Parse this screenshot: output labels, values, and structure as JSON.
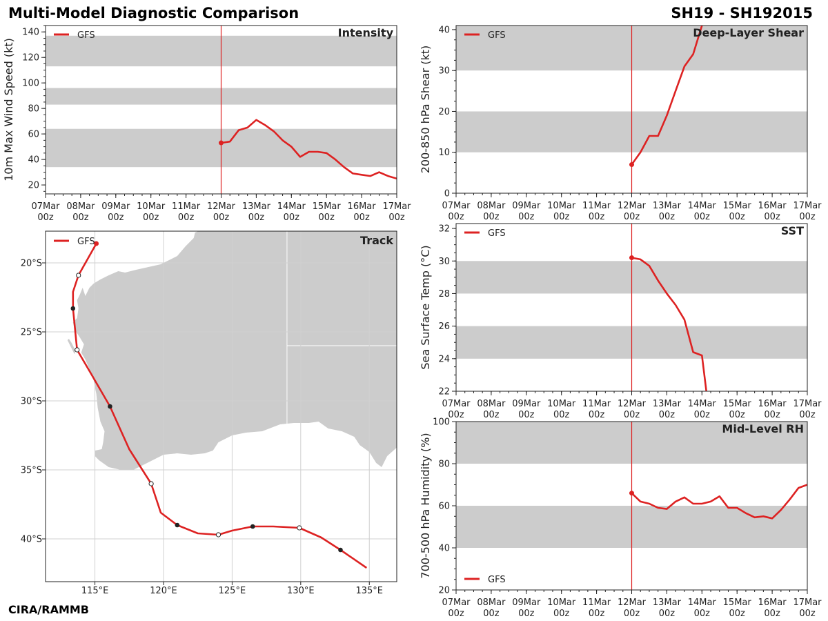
{
  "header": {
    "title": "Multi-Model Diagnostic Comparison",
    "storm_id": "SH19 - SH192015",
    "credit": "CIRA/RAMMB"
  },
  "colors": {
    "series": "#dd2222",
    "band": "#cccccc",
    "land": "#cccccc",
    "grid": "#d0d0d0",
    "axis": "#222222"
  },
  "chart_data": [
    {
      "id": "intensity",
      "type": "line",
      "title": "Intensity",
      "ylabel": "10m Max Wind Speed (kt)",
      "xlim": [
        0,
        240
      ],
      "ylim": [
        13,
        145
      ],
      "yticks": [
        20,
        40,
        60,
        80,
        100,
        120,
        140
      ],
      "xticks": [
        0,
        24,
        48,
        72,
        96,
        120,
        144,
        168,
        192,
        216,
        240
      ],
      "xtick_labels": [
        [
          "07Mar",
          "00z"
        ],
        [
          "08Mar",
          "00z"
        ],
        [
          "09Mar",
          "00z"
        ],
        [
          "10Mar",
          "00z"
        ],
        [
          "11Mar",
          "00z"
        ],
        [
          "12Mar",
          "00z"
        ],
        [
          "13Mar",
          "00z"
        ],
        [
          "14Mar",
          "00z"
        ],
        [
          "15Mar",
          "00z"
        ],
        [
          "16Mar",
          "00z"
        ],
        [
          "17Mar",
          "00z"
        ]
      ],
      "bands": [
        [
          34,
          64
        ],
        [
          83,
          96
        ],
        [
          113,
          137
        ]
      ],
      "vline": 120,
      "legend": "top-left",
      "series": [
        {
          "name": "GFS",
          "x": [
            120,
            126,
            132,
            138,
            144,
            150,
            156,
            162,
            168,
            174,
            180,
            186,
            192,
            198,
            204,
            210,
            216,
            222,
            228,
            234,
            240
          ],
          "values": [
            53,
            54,
            63,
            65,
            71,
            67,
            62,
            55,
            50,
            42,
            46,
            46,
            45,
            40,
            34,
            29,
            28,
            27,
            30,
            27,
            25
          ]
        }
      ]
    },
    {
      "id": "shear",
      "type": "line",
      "title": "Deep-Layer Shear",
      "ylabel": "200-850 hPa Shear (kt)",
      "xlim": [
        0,
        240
      ],
      "ylim": [
        0,
        41
      ],
      "yticks": [
        0,
        10,
        20,
        30,
        40
      ],
      "xticks": [
        0,
        24,
        48,
        72,
        96,
        120,
        144,
        168,
        192,
        216,
        240
      ],
      "xtick_labels": [
        [
          "07Mar",
          "00z"
        ],
        [
          "08Mar",
          "00z"
        ],
        [
          "09Mar",
          "00z"
        ],
        [
          "10Mar",
          "00z"
        ],
        [
          "11Mar",
          "00z"
        ],
        [
          "12Mar",
          "00z"
        ],
        [
          "13Mar",
          "00z"
        ],
        [
          "14Mar",
          "00z"
        ],
        [
          "15Mar",
          "00z"
        ],
        [
          "16Mar",
          "00z"
        ],
        [
          "17Mar",
          "00z"
        ]
      ],
      "bands": [
        [
          10,
          20
        ],
        [
          30,
          41
        ]
      ],
      "vline": 120,
      "legend": "top-left",
      "series": [
        {
          "name": "GFS",
          "x": [
            120,
            126,
            132,
            138,
            144,
            150,
            156,
            162,
            168
          ],
          "values": [
            7,
            10,
            14,
            14,
            19,
            25,
            31,
            34,
            41
          ]
        }
      ]
    },
    {
      "id": "sst",
      "type": "line",
      "title": "SST",
      "ylabel": "Sea Surface Temp (°C)",
      "xlim": [
        0,
        240
      ],
      "ylim": [
        22,
        32.3
      ],
      "yticks": [
        22,
        24,
        26,
        28,
        30,
        32
      ],
      "xticks": [
        0,
        24,
        48,
        72,
        96,
        120,
        144,
        168,
        192,
        216,
        240
      ],
      "xtick_labels": [
        [
          "07Mar",
          "00z"
        ],
        [
          "08Mar",
          "00z"
        ],
        [
          "09Mar",
          "00z"
        ],
        [
          "10Mar",
          "00z"
        ],
        [
          "11Mar",
          "00z"
        ],
        [
          "12Mar",
          "00z"
        ],
        [
          "13Mar",
          "00z"
        ],
        [
          "14Mar",
          "00z"
        ],
        [
          "15Mar",
          "00z"
        ],
        [
          "16Mar",
          "00z"
        ],
        [
          "17Mar",
          "00z"
        ]
      ],
      "bands": [
        [
          24,
          26
        ],
        [
          28,
          30
        ]
      ],
      "vline": 120,
      "legend": "top-left",
      "series": [
        {
          "name": "GFS",
          "x": [
            120,
            126,
            132,
            138,
            144,
            150,
            156,
            162,
            168,
            171
          ],
          "values": [
            30.2,
            30.1,
            29.7,
            28.8,
            28.0,
            27.3,
            26.4,
            24.4,
            24.2,
            22.0
          ]
        }
      ]
    },
    {
      "id": "rh",
      "type": "line",
      "title": "Mid-Level RH",
      "ylabel": "700-500 hPa Humidity (%)",
      "xlim": [
        0,
        240
      ],
      "ylim": [
        20,
        100
      ],
      "yticks": [
        20,
        40,
        60,
        80,
        100
      ],
      "xticks": [
        0,
        24,
        48,
        72,
        96,
        120,
        144,
        168,
        192,
        216,
        240
      ],
      "xtick_labels": [
        [
          "07Mar",
          "00z"
        ],
        [
          "08Mar",
          "00z"
        ],
        [
          "09Mar",
          "00z"
        ],
        [
          "10Mar",
          "00z"
        ],
        [
          "11Mar",
          "00z"
        ],
        [
          "12Mar",
          "00z"
        ],
        [
          "13Mar",
          "00z"
        ],
        [
          "14Mar",
          "00z"
        ],
        [
          "15Mar",
          "00z"
        ],
        [
          "16Mar",
          "00z"
        ],
        [
          "17Mar",
          "00z"
        ]
      ],
      "bands": [
        [
          40,
          60
        ],
        [
          80,
          100
        ]
      ],
      "vline": 120,
      "legend": "bottom-left",
      "series": [
        {
          "name": "GFS",
          "x": [
            120,
            126,
            132,
            138,
            144,
            150,
            156,
            162,
            168,
            174,
            180,
            186,
            192,
            198,
            204,
            210,
            216,
            222,
            228,
            234,
            240
          ],
          "values": [
            66,
            62,
            61,
            59,
            58.5,
            62,
            64,
            61,
            61,
            62,
            64.5,
            59,
            59,
            56.5,
            54.5,
            55,
            54,
            58,
            63,
            68.5,
            70
          ]
        }
      ]
    },
    {
      "id": "track",
      "type": "scatter",
      "title": "Track",
      "xlabel": "",
      "ylabel": "",
      "xlim": [
        111.4,
        137.0
      ],
      "ylim": [
        -43.1,
        -17.7
      ],
      "xticks": [
        115,
        120,
        125,
        130,
        135
      ],
      "xtick_labels": [
        "115°E",
        "120°E",
        "125°E",
        "130°E",
        "135°E"
      ],
      "yticks": [
        -20,
        -25,
        -30,
        -35,
        -40
      ],
      "ytick_labels": [
        "20°S",
        "25°S",
        "30°S",
        "35°S",
        "40°S"
      ],
      "legend": "top-left",
      "series": [
        {
          "name": "GFS",
          "lon": [
            115.1,
            113.8,
            113.4,
            113.4,
            113.7,
            114.7,
            116.1,
            117.5,
            119.1,
            119.8,
            121.0,
            122.5,
            124.0,
            125.0,
            126.5,
            128.0,
            129.9,
            131.5,
            132.9,
            134.8
          ],
          "lat": [
            -18.6,
            -20.9,
            -22.1,
            -23.3,
            -26.3,
            -28.0,
            -30.4,
            -33.5,
            -36.0,
            -38.1,
            -39.0,
            -39.6,
            -39.7,
            -39.4,
            -39.1,
            -39.1,
            -39.2,
            -39.9,
            -40.8,
            -42.1
          ],
          "filled_markers": [
            3,
            6,
            10,
            14,
            18
          ],
          "open_markers": [
            1,
            4,
            8,
            12,
            16
          ]
        }
      ]
    }
  ]
}
